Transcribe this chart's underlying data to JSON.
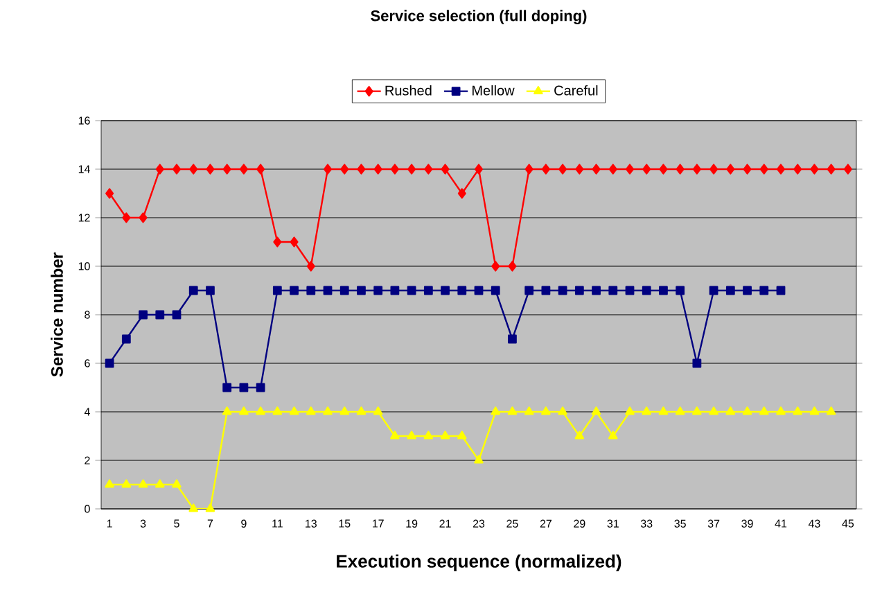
{
  "chart_data": {
    "type": "line",
    "title": "Service selection (full doping)",
    "xlabel": "Execution sequence (normalized)",
    "ylabel": "Service number",
    "categories": [
      "1",
      null,
      "3",
      null,
      "5",
      null,
      "7",
      null,
      "9",
      null,
      "11",
      null,
      "13",
      null,
      "15",
      null,
      "17",
      null,
      "19",
      null,
      "21",
      null,
      "23",
      null,
      "25",
      null,
      "27",
      null,
      "29",
      null,
      "31",
      null,
      "33",
      null,
      "35",
      null,
      "37",
      null,
      "39",
      null,
      "41",
      null,
      "43",
      null,
      "45"
    ],
    "series": [
      {
        "name": "Rushed",
        "color": "#ff0000",
        "marker": "diamond",
        "values": [
          13,
          12,
          12,
          14,
          14,
          14,
          14,
          14,
          14,
          14,
          11,
          11,
          10,
          14,
          14,
          14,
          14,
          14,
          14,
          14,
          14,
          13,
          14,
          10,
          10,
          14,
          14,
          14,
          14,
          14,
          14,
          14,
          14,
          14,
          14,
          14,
          14,
          14,
          14,
          14,
          14,
          14,
          14,
          14,
          14
        ]
      },
      {
        "name": "Mellow",
        "color": "#000080",
        "marker": "square",
        "values": [
          6,
          7,
          8,
          8,
          8,
          9,
          9,
          5,
          5,
          5,
          9,
          9,
          9,
          9,
          9,
          9,
          9,
          9,
          9,
          9,
          9,
          9,
          9,
          9,
          7,
          9,
          9,
          9,
          9,
          9,
          9,
          9,
          9,
          9,
          9,
          6,
          9,
          9,
          9,
          9,
          9,
          null,
          null,
          null,
          null
        ]
      },
      {
        "name": "Careful",
        "color": "#ffff00",
        "marker": "triangle",
        "values": [
          1,
          1,
          1,
          1,
          1,
          0,
          0,
          4,
          4,
          4,
          4,
          4,
          4,
          4,
          4,
          4,
          4,
          3,
          3,
          3,
          3,
          3,
          2,
          4,
          4,
          4,
          4,
          4,
          3,
          4,
          3,
          4,
          4,
          4,
          4,
          4,
          4,
          4,
          4,
          4,
          4,
          4,
          4,
          4,
          null
        ]
      }
    ],
    "ylim": [
      0,
      16
    ],
    "yticks": [
      0,
      2,
      4,
      6,
      8,
      10,
      12,
      14,
      16
    ],
    "grid": "y",
    "legend": "top"
  }
}
